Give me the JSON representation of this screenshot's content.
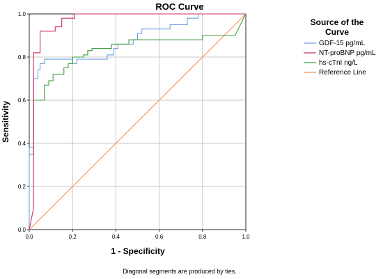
{
  "chart_data": {
    "type": "line",
    "title": "ROC Curve",
    "xlabel": "1 - Specificity",
    "ylabel": "Sensitivity",
    "xlim": [
      0,
      1
    ],
    "ylim": [
      0,
      1
    ],
    "x_ticks": [
      "0.0",
      "0.2",
      "0.4",
      "0.6",
      "0.8",
      "1.0"
    ],
    "y_ticks": [
      "0.0",
      "0.2",
      "0.4",
      "0.6",
      "0.8",
      "1.0"
    ],
    "grid": true,
    "legend_title": [
      "Source of the",
      "Curve"
    ],
    "legend_position": "top-right outside",
    "note": "Diagonal segments are produced by ties.",
    "series": [
      {
        "name": "GDF-15 pg/mL",
        "color": "#6fa0dc",
        "points": [
          [
            0,
            0
          ],
          [
            0,
            0.38
          ],
          [
            0.02,
            0.38
          ],
          [
            0.02,
            0.7
          ],
          [
            0.04,
            0.7
          ],
          [
            0.04,
            0.74
          ],
          [
            0.05,
            0.74
          ],
          [
            0.05,
            0.77
          ],
          [
            0.07,
            0.77
          ],
          [
            0.07,
            0.79
          ],
          [
            0.2,
            0.79
          ],
          [
            0.2,
            0.77
          ],
          [
            0.22,
            0.77
          ],
          [
            0.22,
            0.79
          ],
          [
            0.36,
            0.79
          ],
          [
            0.36,
            0.81
          ],
          [
            0.39,
            0.81
          ],
          [
            0.39,
            0.84
          ],
          [
            0.41,
            0.84
          ],
          [
            0.41,
            0.86
          ],
          [
            0.48,
            0.86
          ],
          [
            0.48,
            0.88
          ],
          [
            0.5,
            0.88
          ],
          [
            0.5,
            0.91
          ],
          [
            0.52,
            0.91
          ],
          [
            0.52,
            0.93
          ],
          [
            0.55,
            0.93
          ],
          [
            0.55,
            0.93
          ],
          [
            0.65,
            0.93
          ],
          [
            0.65,
            0.95
          ],
          [
            0.73,
            0.95
          ],
          [
            0.73,
            0.98
          ],
          [
            0.78,
            0.98
          ],
          [
            0.78,
            1.0
          ],
          [
            1.0,
            1.0
          ]
        ]
      },
      {
        "name": "NT-proBNP pg/mL",
        "color": "#d2305a",
        "points": [
          [
            0,
            0
          ],
          [
            0.02,
            0.1
          ],
          [
            0.02,
            0.82
          ],
          [
            0.05,
            0.82
          ],
          [
            0.05,
            0.92
          ],
          [
            0.12,
            0.92
          ],
          [
            0.12,
            0.94
          ],
          [
            0.15,
            0.94
          ],
          [
            0.15,
            0.98
          ],
          [
            0.21,
            0.98
          ],
          [
            0.21,
            1.0
          ],
          [
            1.0,
            1.0
          ]
        ]
      },
      {
        "name": "hs-cTnI ng/L",
        "color": "#3f9c3f",
        "points": [
          [
            0,
            0.35
          ],
          [
            0.02,
            0.35
          ],
          [
            0.02,
            0.6
          ],
          [
            0.07,
            0.6
          ],
          [
            0.07,
            0.67
          ],
          [
            0.09,
            0.67
          ],
          [
            0.09,
            0.69
          ],
          [
            0.11,
            0.69
          ],
          [
            0.11,
            0.72
          ],
          [
            0.16,
            0.72
          ],
          [
            0.16,
            0.75
          ],
          [
            0.18,
            0.75
          ],
          [
            0.18,
            0.77
          ],
          [
            0.2,
            0.77
          ],
          [
            0.2,
            0.8
          ],
          [
            0.25,
            0.8
          ],
          [
            0.25,
            0.81
          ],
          [
            0.27,
            0.81
          ],
          [
            0.27,
            0.83
          ],
          [
            0.29,
            0.83
          ],
          [
            0.29,
            0.84
          ],
          [
            0.38,
            0.84
          ],
          [
            0.38,
            0.86
          ],
          [
            0.46,
            0.86
          ],
          [
            0.46,
            0.88
          ],
          [
            0.8,
            0.88
          ],
          [
            0.8,
            0.9
          ],
          [
            0.95,
            0.9
          ],
          [
            1.0,
            1.0
          ]
        ]
      },
      {
        "name": "Reference Line",
        "color": "#f0925a",
        "points": [
          [
            0,
            0
          ],
          [
            1,
            1
          ]
        ]
      }
    ]
  }
}
